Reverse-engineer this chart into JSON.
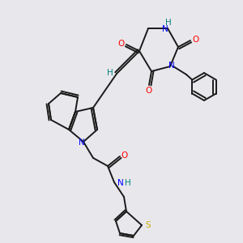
{
  "bg_color": "#e8e8ec",
  "atom_colors": {
    "C": "#1a1a1a",
    "N": "#0000ff",
    "O": "#ff0000",
    "S": "#ccaa00",
    "H": "#008080"
  },
  "lw": 1.4,
  "fontsize": 7.5
}
